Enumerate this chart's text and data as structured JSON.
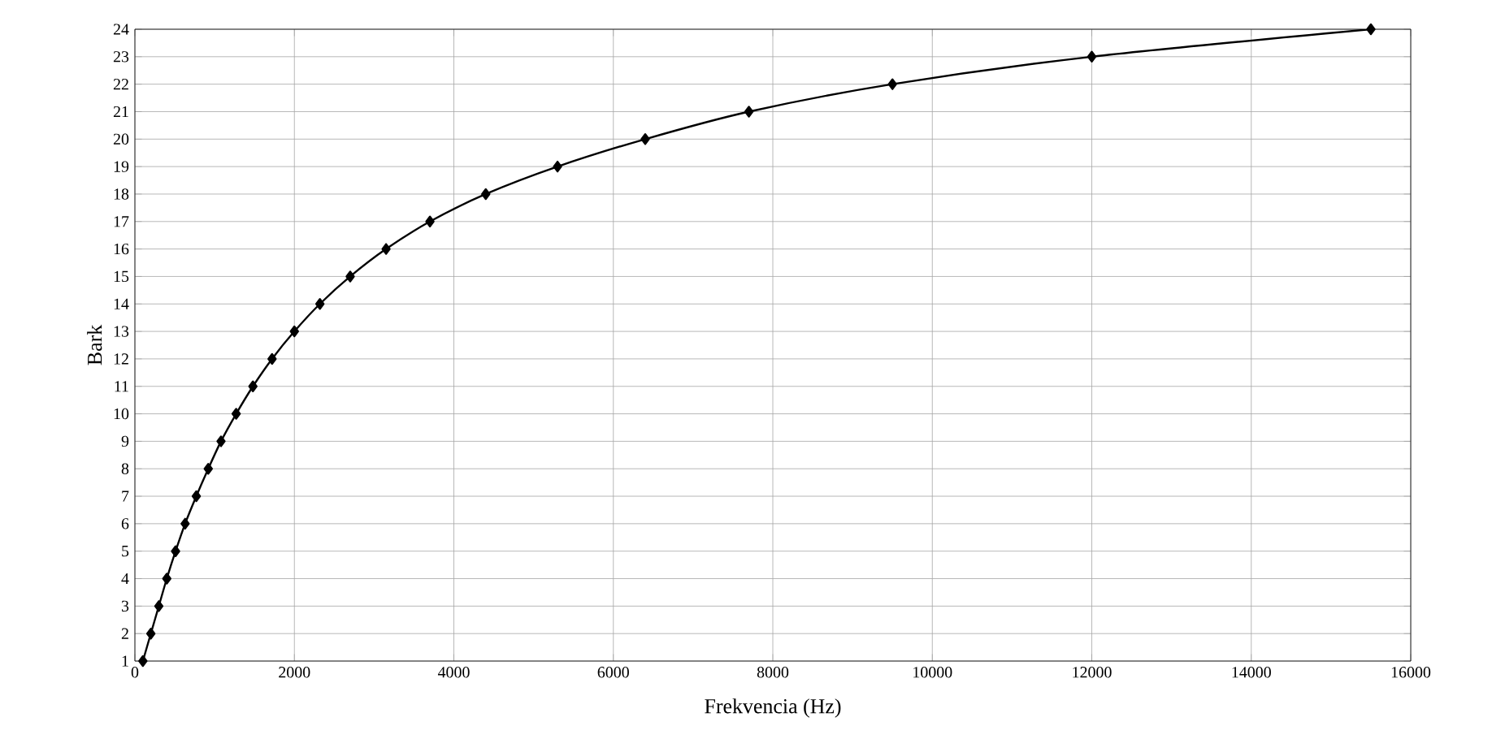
{
  "chart_data": {
    "type": "line",
    "xlabel": "Frekvencia (Hz)",
    "ylabel": "Bark",
    "x": [
      100,
      200,
      300,
      400,
      510,
      630,
      770,
      920,
      1080,
      1270,
      1480,
      1720,
      2000,
      2320,
      2700,
      3150,
      3700,
      4400,
      5300,
      6400,
      7700,
      9500,
      12000,
      15500
    ],
    "series": [
      {
        "color": "#000000",
        "values": [
          1,
          2,
          3,
          4,
          5,
          6,
          7,
          8,
          9,
          10,
          11,
          12,
          13,
          14,
          15,
          16,
          17,
          18,
          19,
          20,
          21,
          22,
          23,
          24
        ]
      }
    ],
    "xlim": [
      0,
      16000
    ],
    "xticks": [
      0,
      2000,
      4000,
      6000,
      8000,
      10000,
      12000,
      14000,
      16000
    ],
    "ylim": [
      1,
      24
    ],
    "yticks": [
      1,
      2,
      3,
      4,
      5,
      6,
      7,
      8,
      9,
      10,
      11,
      12,
      13,
      14,
      15,
      16,
      17,
      18,
      19,
      20,
      21,
      22,
      23,
      24
    ],
    "grid": true,
    "marker": "diamond",
    "line_style": "solid"
  }
}
